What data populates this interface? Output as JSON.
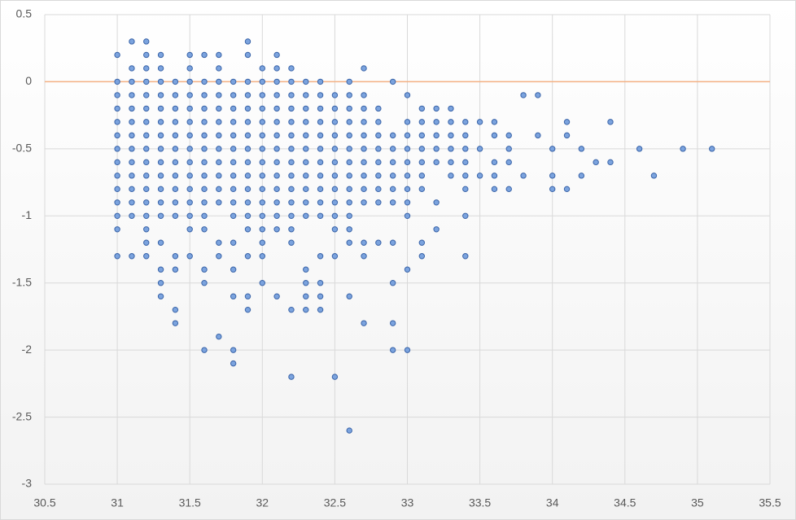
{
  "chart_data": {
    "type": "scatter",
    "x": [
      31,
      31,
      31,
      31,
      31,
      31,
      31,
      31,
      31,
      31,
      31,
      31,
      31,
      31,
      31.1,
      31.1,
      31.1,
      31.1,
      31.1,
      31.1,
      31.1,
      31.1,
      31.1,
      31.1,
      31.1,
      31.1,
      31.1,
      31.1,
      31.2,
      31.2,
      31.2,
      31.2,
      31.2,
      31.2,
      31.2,
      31.2,
      31.2,
      31.2,
      31.2,
      31.2,
      31.2,
      31.2,
      31.2,
      31.2,
      31.2,
      31.3,
      31.3,
      31.3,
      31.3,
      31.3,
      31.3,
      31.3,
      31.3,
      31.3,
      31.3,
      31.3,
      31.3,
      31.3,
      31.3,
      31.3,
      31.3,
      31.3,
      31.4,
      31.4,
      31.4,
      31.4,
      31.4,
      31.4,
      31.4,
      31.4,
      31.4,
      31.4,
      31.4,
      31.4,
      31.4,
      31.4,
      31.4,
      31.5,
      31.5,
      31.5,
      31.5,
      31.5,
      31.5,
      31.5,
      31.5,
      31.5,
      31.5,
      31.5,
      31.5,
      31.5,
      31.5,
      31.5,
      31.6,
      31.6,
      31.6,
      31.6,
      31.6,
      31.6,
      31.6,
      31.6,
      31.6,
      31.6,
      31.6,
      31.6,
      31.6,
      31.6,
      31.6,
      31.6,
      31.7,
      31.7,
      31.7,
      31.7,
      31.7,
      31.7,
      31.7,
      31.7,
      31.7,
      31.7,
      31.7,
      31.7,
      31.7,
      31.7,
      31.7,
      31.8,
      31.8,
      31.8,
      31.8,
      31.8,
      31.8,
      31.8,
      31.8,
      31.8,
      31.8,
      31.8,
      31.8,
      31.8,
      31.8,
      31.8,
      31.8,
      31.9,
      31.9,
      31.9,
      31.9,
      31.9,
      31.9,
      31.9,
      31.9,
      31.9,
      31.9,
      31.9,
      31.9,
      31.9,
      31.9,
      31.9,
      31.9,
      31.9,
      32,
      32,
      32,
      32,
      32,
      32,
      32,
      32,
      32,
      32,
      32,
      32,
      32,
      32,
      32,
      32,
      32.1,
      32.1,
      32.1,
      32.1,
      32.1,
      32.1,
      32.1,
      32.1,
      32.1,
      32.1,
      32.1,
      32.1,
      32.1,
      32.1,
      32.1,
      32.2,
      32.2,
      32.2,
      32.2,
      32.2,
      32.2,
      32.2,
      32.2,
      32.2,
      32.2,
      32.2,
      32.2,
      32.2,
      32.2,
      32.2,
      32.2,
      32.3,
      32.3,
      32.3,
      32.3,
      32.3,
      32.3,
      32.3,
      32.3,
      32.3,
      32.3,
      32.3,
      32.3,
      32.3,
      32.3,
      32.3,
      32.4,
      32.4,
      32.4,
      32.4,
      32.4,
      32.4,
      32.4,
      32.4,
      32.4,
      32.4,
      32.4,
      32.4,
      32.4,
      32.4,
      32.4,
      32.5,
      32.5,
      32.5,
      32.5,
      32.5,
      32.5,
      32.5,
      32.5,
      32.5,
      32.5,
      32.5,
      32.5,
      32.5,
      32.6,
      32.6,
      32.6,
      32.6,
      32.6,
      32.6,
      32.6,
      32.6,
      32.6,
      32.6,
      32.6,
      32.6,
      32.6,
      32.6,
      32.6,
      32.7,
      32.7,
      32.7,
      32.7,
      32.7,
      32.7,
      32.7,
      32.7,
      32.7,
      32.7,
      32.7,
      32.7,
      32.7,
      32.8,
      32.8,
      32.8,
      32.8,
      32.8,
      32.8,
      32.8,
      32.8,
      32.8,
      32.9,
      32.9,
      32.9,
      32.9,
      32.9,
      32.9,
      32.9,
      32.9,
      32.9,
      32.9,
      32.9,
      33,
      33,
      33,
      33,
      33,
      33,
      33,
      33,
      33,
      33,
      33,
      33.1,
      33.1,
      33.1,
      33.1,
      33.1,
      33.1,
      33.1,
      33.1,
      33.1,
      33.2,
      33.2,
      33.2,
      33.2,
      33.2,
      33.2,
      33.2,
      33.3,
      33.3,
      33.3,
      33.3,
      33.3,
      33.3,
      33.4,
      33.4,
      33.4,
      33.4,
      33.4,
      33.4,
      33.4,
      33.4,
      33.5,
      33.5,
      33.5,
      33.6,
      33.6,
      33.6,
      33.6,
      33.6,
      33.7,
      33.7,
      33.7,
      33.7,
      33.8,
      33.8,
      33.9,
      33.9,
      34,
      34,
      34,
      34.1,
      34.1,
      34.1,
      34.2,
      34.2,
      34.3,
      34.4,
      34.4,
      34.6,
      34.7,
      34.9,
      35.1
    ],
    "y": [
      0.2,
      0,
      -0.1,
      -0.2,
      -0.3,
      -0.4,
      -0.5,
      -0.6,
      -0.7,
      -0.8,
      -0.9,
      -1,
      -1.1,
      -1.3,
      0.3,
      0.1,
      0,
      -0.1,
      -0.2,
      -0.3,
      -0.4,
      -0.5,
      -0.6,
      -0.7,
      -0.8,
      -0.9,
      -1,
      -1.3,
      0.3,
      0.2,
      0.1,
      0,
      -0.1,
      -0.2,
      -0.3,
      -0.4,
      -0.5,
      -0.6,
      -0.7,
      -0.8,
      -0.9,
      -1,
      -1.1,
      -1.2,
      -1.3,
      0.2,
      0.1,
      0,
      -0.1,
      -0.2,
      -0.3,
      -0.4,
      -0.5,
      -0.6,
      -0.7,
      -0.8,
      -0.9,
      -1,
      -1.2,
      -1.4,
      -1.5,
      -1.6,
      0,
      -0.1,
      -0.2,
      -0.3,
      -0.4,
      -0.5,
      -0.6,
      -0.7,
      -0.8,
      -0.9,
      -1,
      -1.3,
      -1.4,
      -1.7,
      -1.8,
      0.2,
      0.1,
      0,
      -0.1,
      -0.2,
      -0.3,
      -0.4,
      -0.5,
      -0.6,
      -0.7,
      -0.8,
      -0.9,
      -1,
      -1.1,
      -1.3,
      0.2,
      0,
      -0.1,
      -0.2,
      -0.3,
      -0.4,
      -0.5,
      -0.6,
      -0.7,
      -0.8,
      -0.9,
      -1,
      -1.1,
      -1.4,
      -1.5,
      -2,
      0.2,
      0.1,
      0,
      -0.1,
      -0.2,
      -0.3,
      -0.4,
      -0.5,
      -0.6,
      -0.7,
      -0.8,
      -0.9,
      -1.2,
      -1.3,
      -1.9,
      0,
      -0.1,
      -0.2,
      -0.3,
      -0.4,
      -0.5,
      -0.6,
      -0.7,
      -0.8,
      -0.9,
      -1,
      -1.2,
      -1.4,
      -1.6,
      -2,
      -2.1,
      0.3,
      0.2,
      0,
      -0.1,
      -0.2,
      -0.3,
      -0.4,
      -0.5,
      -0.6,
      -0.7,
      -0.8,
      -0.9,
      -1,
      -1.1,
      -1.3,
      -1.6,
      -1.7,
      0.1,
      0,
      -0.1,
      -0.2,
      -0.3,
      -0.4,
      -0.5,
      -0.6,
      -0.7,
      -0.8,
      -0.9,
      -1,
      -1.1,
      -1.2,
      -1.3,
      -1.5,
      0.2,
      0.1,
      0,
      -0.1,
      -0.2,
      -0.3,
      -0.4,
      -0.5,
      -0.6,
      -0.7,
      -0.8,
      -0.9,
      -1,
      -1.1,
      -1.6,
      0.1,
      0,
      -0.1,
      -0.2,
      -0.3,
      -0.4,
      -0.5,
      -0.6,
      -0.7,
      -0.8,
      -0.9,
      -1,
      -1.1,
      -1.2,
      -1.7,
      -2.2,
      0,
      -0.1,
      -0.2,
      -0.3,
      -0.4,
      -0.5,
      -0.6,
      -0.7,
      -0.8,
      -0.9,
      -1,
      -1.4,
      -1.5,
      -1.6,
      -1.7,
      0,
      -0.1,
      -0.2,
      -0.3,
      -0.4,
      -0.5,
      -0.6,
      -0.7,
      -0.8,
      -0.9,
      -1,
      -1.3,
      -1.5,
      -1.6,
      -1.7,
      -0.1,
      -0.2,
      -0.3,
      -0.4,
      -0.5,
      -0.6,
      -0.7,
      -0.8,
      -0.9,
      -1,
      -1.1,
      -1.3,
      -2.2,
      0,
      -0.1,
      -0.2,
      -0.3,
      -0.4,
      -0.5,
      -0.6,
      -0.7,
      -0.8,
      -0.9,
      -1,
      -1.1,
      -1.2,
      -1.6,
      -2.6,
      0.1,
      -0.1,
      -0.2,
      -0.3,
      -0.4,
      -0.5,
      -0.6,
      -0.7,
      -0.8,
      -0.9,
      -1.2,
      -1.3,
      -1.8,
      -0.2,
      -0.3,
      -0.4,
      -0.5,
      -0.6,
      -0.7,
      -0.8,
      -0.9,
      -1.2,
      0,
      -0.4,
      -0.5,
      -0.6,
      -0.7,
      -0.8,
      -0.9,
      -1.2,
      -1.5,
      -1.8,
      -2,
      -0.1,
      -0.3,
      -0.4,
      -0.5,
      -0.6,
      -0.7,
      -0.8,
      -0.9,
      -1,
      -1.4,
      -2,
      -0.2,
      -0.3,
      -0.4,
      -0.5,
      -0.6,
      -0.7,
      -0.8,
      -1.2,
      -1.3,
      -0.2,
      -0.3,
      -0.4,
      -0.5,
      -0.6,
      -0.9,
      -1.1,
      -0.2,
      -0.3,
      -0.4,
      -0.5,
      -0.6,
      -0.7,
      -0.3,
      -0.4,
      -0.5,
      -0.6,
      -0.7,
      -0.8,
      -1,
      -1.3,
      -0.3,
      -0.5,
      -0.7,
      -0.3,
      -0.4,
      -0.6,
      -0.7,
      -0.8,
      -0.4,
      -0.5,
      -0.6,
      -0.8,
      -0.1,
      -0.7,
      -0.1,
      -0.4,
      -0.5,
      -0.7,
      -0.8,
      -0.3,
      -0.4,
      -0.8,
      -0.5,
      -0.7,
      -0.6,
      -0.3,
      -0.6,
      -0.5,
      -0.7,
      -0.5,
      -0.5
    ],
    "color": "#7ba3de",
    "edge_color": "#3a64a8",
    "zero_line_color": "#f4b183",
    "xlim": [
      30.5,
      35.5
    ],
    "xticks": [
      30.5,
      31,
      31.5,
      32,
      32.5,
      33,
      33.5,
      34,
      34.5,
      35,
      35.5
    ],
    "ylim": [
      -3,
      0.5
    ],
    "yticks": [
      0.5,
      0,
      -0.5,
      -1,
      -1.5,
      -2,
      -2.5,
      -3
    ],
    "grid": true
  }
}
